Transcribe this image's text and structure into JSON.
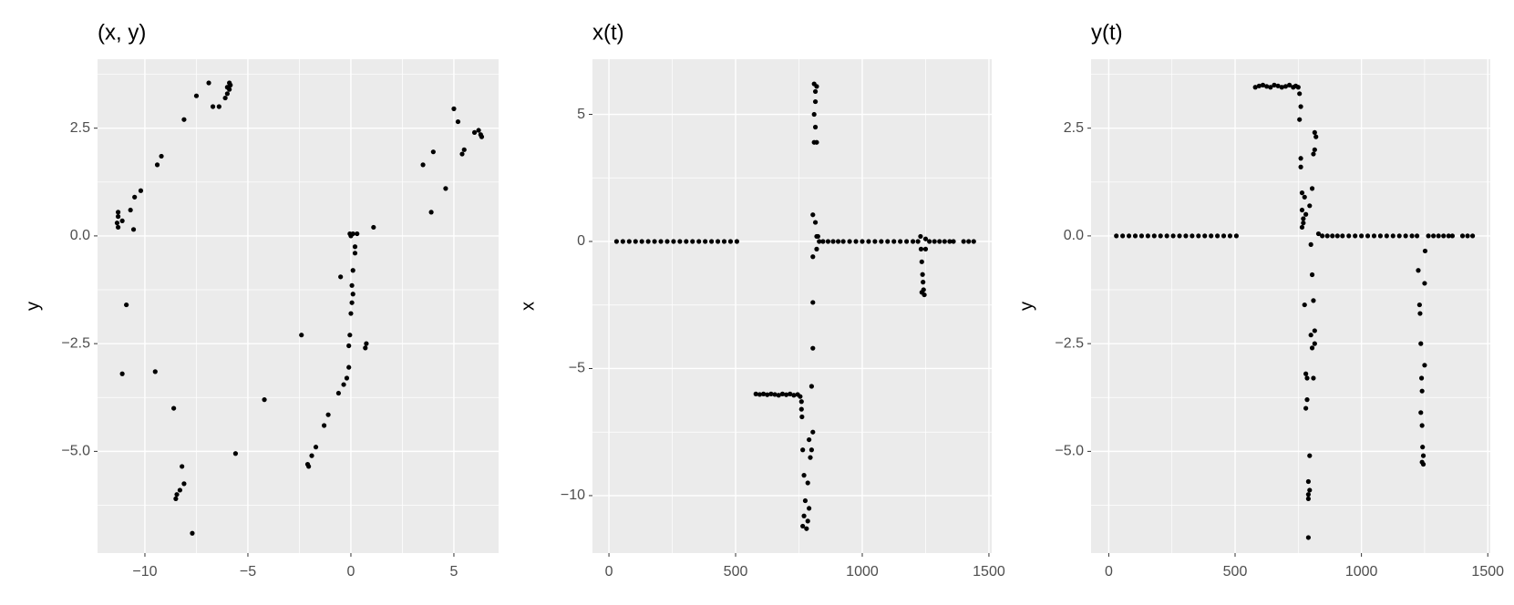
{
  "chart_data": [
    {
      "type": "scatter",
      "title": "(x, y)",
      "y_label": "y",
      "color": "#000000",
      "grid": true,
      "xlim": [
        -12.3,
        7.17
      ],
      "ylim": [
        -7.36,
        4.1
      ],
      "xticks": [
        {
          "value": -10,
          "label": "−10"
        },
        {
          "value": -5,
          "label": "−5"
        },
        0,
        5
      ],
      "yticks": [
        {
          "value": -5,
          "label": "−5.0"
        },
        {
          "value": -2.5,
          "label": "−2.5"
        },
        {
          "value": 0,
          "label": "0.0"
        },
        2.5
      ],
      "x": [
        -11.3,
        -11.3,
        -11.35,
        -11.3,
        -11.1,
        -10.7,
        -10.55,
        -10.5,
        -10.2,
        -9.4,
        -9.2,
        -8.1,
        -7.5,
        -6.9,
        -6.7,
        -6.4,
        -6.1,
        -6.0,
        -5.9,
        -5.85,
        -5.9,
        -6.0,
        -10.9,
        -11.1,
        -9.5,
        -8.6,
        -8.2,
        -8.5,
        -8.3,
        -8.1,
        -8.45,
        -7.7,
        -5.6,
        -4.2,
        -2.4,
        -2.1,
        -2.05,
        -1.9,
        -1.7,
        -1.3,
        -1.1,
        -0.6,
        -0.35,
        -0.2,
        -0.1,
        -0.5,
        -0.1,
        -0.05,
        0.0,
        0.05,
        0.1,
        0.05,
        0.1,
        0.2,
        0.2,
        0.0,
        -0.05,
        0.1,
        0.3,
        0.7,
        0.75,
        1.1,
        3.5,
        3.9,
        4.0,
        4.6,
        5.0,
        5.2,
        5.4,
        5.5,
        6.0,
        6.2,
        6.3,
        6.35
      ],
      "values": [
        0.55,
        0.45,
        0.3,
        0.2,
        0.35,
        0.6,
        0.15,
        0.9,
        1.05,
        1.65,
        1.85,
        2.7,
        3.25,
        3.55,
        3.0,
        3.0,
        3.2,
        3.3,
        3.4,
        3.5,
        3.55,
        3.45,
        -1.6,
        -3.2,
        -3.15,
        -4.0,
        -5.35,
        -6.1,
        -5.9,
        -5.75,
        -6.0,
        -6.9,
        -5.05,
        -3.8,
        -2.3,
        -5.3,
        -5.35,
        -5.1,
        -4.9,
        -4.4,
        -4.15,
        -3.65,
        -3.45,
        -3.3,
        -3.05,
        -0.95,
        -2.55,
        -2.3,
        -1.8,
        -1.55,
        -1.35,
        -1.15,
        -0.8,
        -0.4,
        -0.25,
        0.0,
        0.05,
        0.05,
        0.05,
        -2.6,
        -2.5,
        0.2,
        1.65,
        0.55,
        1.95,
        1.1,
        2.95,
        2.65,
        1.9,
        2.0,
        2.4,
        2.45,
        2.35,
        2.3
      ]
    },
    {
      "type": "scatter",
      "title": "x(t)",
      "y_label": "x",
      "color": "#000000",
      "grid": true,
      "xlim": [
        -65,
        1511
      ],
      "ylim": [
        -12.26,
        7.17
      ],
      "xticks": [
        0,
        500,
        1000,
        1500
      ],
      "yticks": [
        {
          "value": -10,
          "label": "−10"
        },
        {
          "value": -5,
          "label": "−5"
        },
        0,
        5
      ],
      "x": [
        30,
        55,
        80,
        105,
        130,
        155,
        180,
        205,
        230,
        255,
        280,
        305,
        330,
        355,
        380,
        405,
        430,
        455,
        480,
        505,
        580,
        595,
        610,
        625,
        640,
        655,
        670,
        685,
        700,
        715,
        730,
        745,
        755,
        760,
        760,
        762,
        765,
        770,
        775,
        770,
        765,
        780,
        785,
        790,
        785,
        795,
        800,
        805,
        790,
        800,
        805,
        805,
        805,
        805,
        815,
        820,
        810,
        820,
        815,
        810,
        815,
        820,
        810,
        815,
        820,
        825,
        830,
        845,
        865,
        885,
        905,
        925,
        950,
        975,
        1000,
        1025,
        1050,
        1075,
        1100,
        1125,
        1150,
        1175,
        1200,
        1220,
        1230,
        1232,
        1235,
        1238,
        1240,
        1242,
        1245,
        1235,
        1250,
        1250,
        1265,
        1285,
        1305,
        1325,
        1345,
        1360,
        1400,
        1420,
        1440
      ],
      "values": [
        0,
        0,
        0,
        0,
        0,
        0,
        0,
        0,
        0,
        0,
        0,
        0,
        0,
        0,
        0,
        0,
        0,
        0,
        0,
        0,
        -6.0,
        -6.02,
        -6.0,
        -6.03,
        -6.0,
        -6.02,
        -6.05,
        -6.0,
        -6.03,
        -6.0,
        -6.05,
        -6.02,
        -6.1,
        -6.3,
        -6.6,
        -6.9,
        -8.2,
        -9.2,
        -10.2,
        -10.8,
        -11.2,
        -11.3,
        -11.0,
        -10.5,
        -9.5,
        -8.5,
        -8.2,
        -7.5,
        -7.8,
        -5.7,
        -4.2,
        -2.4,
        -0.6,
        1.05,
        0.75,
        0.2,
        3.9,
        3.9,
        4.5,
        5.0,
        5.5,
        6.1,
        6.2,
        5.9,
        -0.3,
        0.2,
        0.0,
        0,
        0,
        0,
        0,
        0,
        0,
        0,
        0,
        0,
        0,
        0,
        0,
        0,
        0,
        0,
        0,
        0,
        0.2,
        -0.3,
        -0.8,
        -1.3,
        -1.6,
        -1.9,
        -2.1,
        -2.0,
        0.1,
        -0.3,
        0,
        0,
        0,
        0,
        0,
        0,
        0,
        0,
        0
      ]
    },
    {
      "type": "scatter",
      "title": "y(t)",
      "y_label": "y",
      "color": "#000000",
      "grid": true,
      "xlim": [
        -70,
        1510
      ],
      "ylim": [
        -7.36,
        4.1
      ],
      "xticks": [
        0,
        500,
        1000,
        1500
      ],
      "yticks": [
        {
          "value": -5,
          "label": "−5.0"
        },
        {
          "value": -2.5,
          "label": "−2.5"
        },
        {
          "value": 0,
          "label": "0.0"
        },
        2.5
      ],
      "x": [
        30,
        55,
        80,
        105,
        130,
        155,
        180,
        205,
        230,
        255,
        280,
        305,
        330,
        355,
        380,
        405,
        430,
        455,
        480,
        505,
        580,
        595,
        610,
        625,
        640,
        655,
        670,
        685,
        700,
        715,
        730,
        740,
        750,
        755,
        760,
        755,
        760,
        760,
        765,
        765,
        770,
        765,
        770,
        775,
        780,
        775,
        780,
        785,
        780,
        785,
        790,
        790,
        795,
        790,
        790,
        795,
        800,
        805,
        810,
        815,
        815,
        810,
        805,
        800,
        795,
        805,
        810,
        815,
        820,
        815,
        830,
        845,
        865,
        885,
        905,
        925,
        950,
        975,
        1000,
        1025,
        1050,
        1075,
        1100,
        1125,
        1150,
        1175,
        1200,
        1220,
        1225,
        1230,
        1232,
        1235,
        1238,
        1240,
        1235,
        1240,
        1242,
        1245,
        1245,
        1240,
        1250,
        1250,
        1252,
        1265,
        1285,
        1305,
        1325,
        1345,
        1360,
        1400,
        1420,
        1440
      ],
      "values": [
        0,
        0,
        0,
        0,
        0,
        0,
        0,
        0,
        0,
        0,
        0,
        0,
        0,
        0,
        0,
        0,
        0,
        0,
        0,
        0,
        3.45,
        3.48,
        3.5,
        3.47,
        3.45,
        3.5,
        3.48,
        3.45,
        3.47,
        3.5,
        3.45,
        3.48,
        3.45,
        3.3,
        3.0,
        2.7,
        1.8,
        1.6,
        1.0,
        0.6,
        0.4,
        0.2,
        0.3,
        0.9,
        0.5,
        -1.6,
        -3.2,
        -3.3,
        -4.0,
        -3.8,
        -5.7,
        -6.0,
        -5.9,
        -6.1,
        -7.0,
        -5.1,
        -2.3,
        -2.6,
        -3.3,
        -2.5,
        -2.2,
        -1.5,
        -0.9,
        -0.2,
        0.7,
        1.1,
        1.9,
        2.0,
        2.3,
        2.4,
        0.05,
        0,
        0,
        0,
        0,
        0,
        0,
        0,
        0,
        0,
        0,
        0,
        0,
        0,
        0,
        0,
        0,
        0,
        -0.8,
        -1.6,
        -1.8,
        -2.5,
        -3.3,
        -3.6,
        -4.1,
        -4.4,
        -4.9,
        -5.1,
        -5.3,
        -5.25,
        -3.0,
        -1.1,
        -0.35,
        0,
        0,
        0,
        0,
        0,
        0,
        0,
        0,
        0
      ]
    }
  ]
}
